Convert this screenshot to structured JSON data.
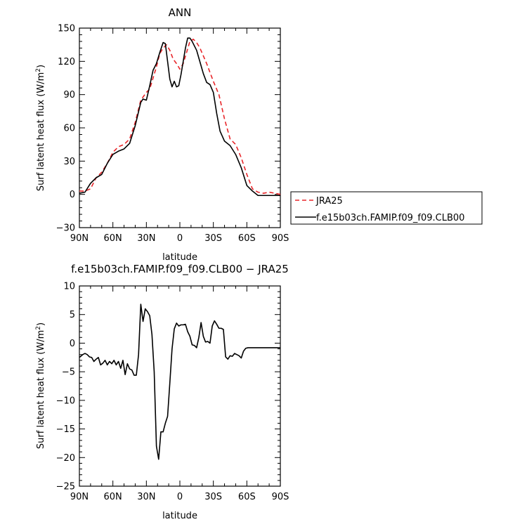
{
  "chart_data": [
    {
      "type": "line",
      "title": "ANN",
      "xlabel": "latitude",
      "ylabel": "Surf latent heat flux (W/m²)",
      "ylabel_main": "Surf latent heat flux (W/m",
      "ylabel_sup": "2",
      "ylabel_close": ")",
      "xlim": [
        -90,
        90
      ],
      "ylim": [
        -30,
        150
      ],
      "x_ticks": [
        -90,
        -60,
        -30,
        0,
        30,
        60,
        90
      ],
      "x_tick_labels": [
        "90N",
        "60N",
        "30N",
        "0",
        "30S",
        "60S",
        "90S"
      ],
      "y_ticks": [
        -30,
        0,
        30,
        60,
        90,
        120,
        150
      ],
      "y_tick_labels": [
        "−30",
        "0",
        "30",
        "60",
        "90",
        "120",
        "150"
      ],
      "grid": false,
      "legend": "right",
      "series": [
        {
          "name": "JRA25",
          "color": "#e8262a",
          "dash": "dashed",
          "x": [
            -90,
            -85,
            -80,
            -75,
            -70,
            -65,
            -60,
            -55,
            -50,
            -45,
            -40,
            -35,
            -30,
            -27,
            -24,
            -21,
            -18,
            -15,
            -12,
            -9,
            -6,
            -3,
            0,
            3,
            6,
            9,
            12,
            15,
            18,
            21,
            24,
            27,
            30,
            35,
            40,
            45,
            50,
            55,
            60,
            65,
            70,
            75,
            80,
            85,
            90
          ],
          "values": [
            3,
            3,
            5,
            15,
            20,
            28,
            38,
            43,
            45,
            50,
            65,
            85,
            92,
            95,
            105,
            115,
            127,
            132,
            135,
            130,
            122,
            118,
            113,
            118,
            128,
            138,
            140,
            137,
            132,
            125,
            118,
            110,
            102,
            90,
            68,
            50,
            45,
            33,
            18,
            5,
            2,
            1,
            2,
            1,
            0
          ]
        },
        {
          "name": "f.e15b03ch.FAMIP.f09_f09.CLB00",
          "color": "#000000",
          "dash": "solid",
          "x": [
            -90,
            -85,
            -80,
            -75,
            -70,
            -65,
            -60,
            -55,
            -50,
            -45,
            -40,
            -35,
            -33,
            -30,
            -27,
            -24,
            -21,
            -18,
            -15,
            -13,
            -11,
            -9,
            -7,
            -5,
            -3,
            -1,
            1,
            3,
            5,
            7,
            9,
            11,
            13,
            15,
            17,
            19,
            21,
            24,
            27,
            30,
            33,
            36,
            40,
            45,
            50,
            55,
            60,
            65,
            70,
            75,
            80,
            85,
            90
          ],
          "values": [
            1,
            2,
            10,
            15,
            18,
            28,
            36,
            39,
            41,
            46,
            62,
            83,
            86,
            85,
            98,
            112,
            118,
            128,
            137,
            136,
            120,
            104,
            97,
            102,
            97,
            98,
            108,
            120,
            132,
            141,
            141,
            138,
            134,
            130,
            123,
            116,
            109,
            101,
            99,
            92,
            73,
            57,
            48,
            44,
            36,
            24,
            8,
            3,
            -1,
            -1,
            -1,
            -1,
            -1
          ]
        }
      ]
    },
    {
      "type": "line",
      "title": "f.e15b03ch.FAMIP.f09_f09.CLB00 − JRA25",
      "xlabel": "latitude",
      "ylabel": "Surf latent heat flux (W/m²)",
      "ylabel_main": "Surf latent heat flux (W/m",
      "ylabel_sup": "2",
      "ylabel_close": ")",
      "xlim": [
        -90,
        90
      ],
      "ylim": [
        -25,
        10
      ],
      "x_ticks": [
        -90,
        -60,
        -30,
        0,
        30,
        60,
        90
      ],
      "x_tick_labels": [
        "90N",
        "60N",
        "30N",
        "0",
        "30S",
        "60S",
        "90S"
      ],
      "y_ticks": [
        -25,
        -20,
        -15,
        -10,
        -5,
        0,
        5,
        10
      ],
      "y_tick_labels": [
        "−25",
        "−20",
        "−15",
        "−10",
        "−5",
        "0",
        "5",
        "10"
      ],
      "grid": false,
      "series": [
        {
          "name": "f.e15b03ch.FAMIP.f09_f09.CLB00 − JRA25",
          "color": "#000000",
          "dash": "solid",
          "x": [
            -90,
            -87,
            -85,
            -83,
            -81,
            -79,
            -77,
            -75,
            -73,
            -71,
            -69,
            -67,
            -65,
            -63,
            -61,
            -59,
            -57,
            -55,
            -53,
            -51,
            -49,
            -47,
            -45,
            -43,
            -41,
            -39,
            -37,
            -35,
            -33,
            -31,
            -29,
            -27,
            -25,
            -23,
            -21,
            -19,
            -17,
            -15,
            -13,
            -11,
            -9,
            -7,
            -5,
            -3,
            -1,
            1,
            3,
            5,
            7,
            9,
            11,
            13,
            15,
            17,
            19,
            21,
            23,
            25,
            27,
            29,
            31,
            33,
            35,
            37,
            39,
            41,
            43,
            45,
            47,
            49,
            51,
            53,
            55,
            57,
            59,
            61,
            63,
            65,
            67,
            69,
            71,
            73,
            75,
            77,
            79,
            81,
            83,
            85,
            87,
            89,
            90
          ],
          "values": [
            -2.5,
            -2.0,
            -1.8,
            -2.0,
            -2.4,
            -2.5,
            -3.2,
            -2.8,
            -2.5,
            -3.8,
            -3.5,
            -3.0,
            -3.8,
            -3.2,
            -3.6,
            -3.0,
            -3.8,
            -3.2,
            -4.4,
            -3.0,
            -5.5,
            -3.6,
            -4.5,
            -4.7,
            -5.6,
            -5.6,
            -2.0,
            6.8,
            3.8,
            6.0,
            5.5,
            4.8,
            1.5,
            -5.0,
            -18.0,
            -20.3,
            -15.5,
            -15.5,
            -14.0,
            -12.8,
            -7.0,
            -1.0,
            2.5,
            3.5,
            3.0,
            3.2,
            3.2,
            3.3,
            2.0,
            1.2,
            -0.3,
            -0.4,
            -0.8,
            1.0,
            3.6,
            1.2,
            0.2,
            0.3,
            0.0,
            3.0,
            3.9,
            3.3,
            2.6,
            2.6,
            2.4,
            -2.4,
            -2.8,
            -2.2,
            -2.3,
            -1.8,
            -2.0,
            -2.2,
            -2.6,
            -1.4,
            -0.9,
            -0.8,
            -0.8,
            -0.8,
            -0.8,
            -0.8,
            -0.8,
            -0.8,
            -0.8,
            -0.8,
            -0.8,
            -0.8,
            -0.8,
            -0.8,
            -0.8,
            -0.8,
            -0.8
          ]
        }
      ]
    }
  ]
}
